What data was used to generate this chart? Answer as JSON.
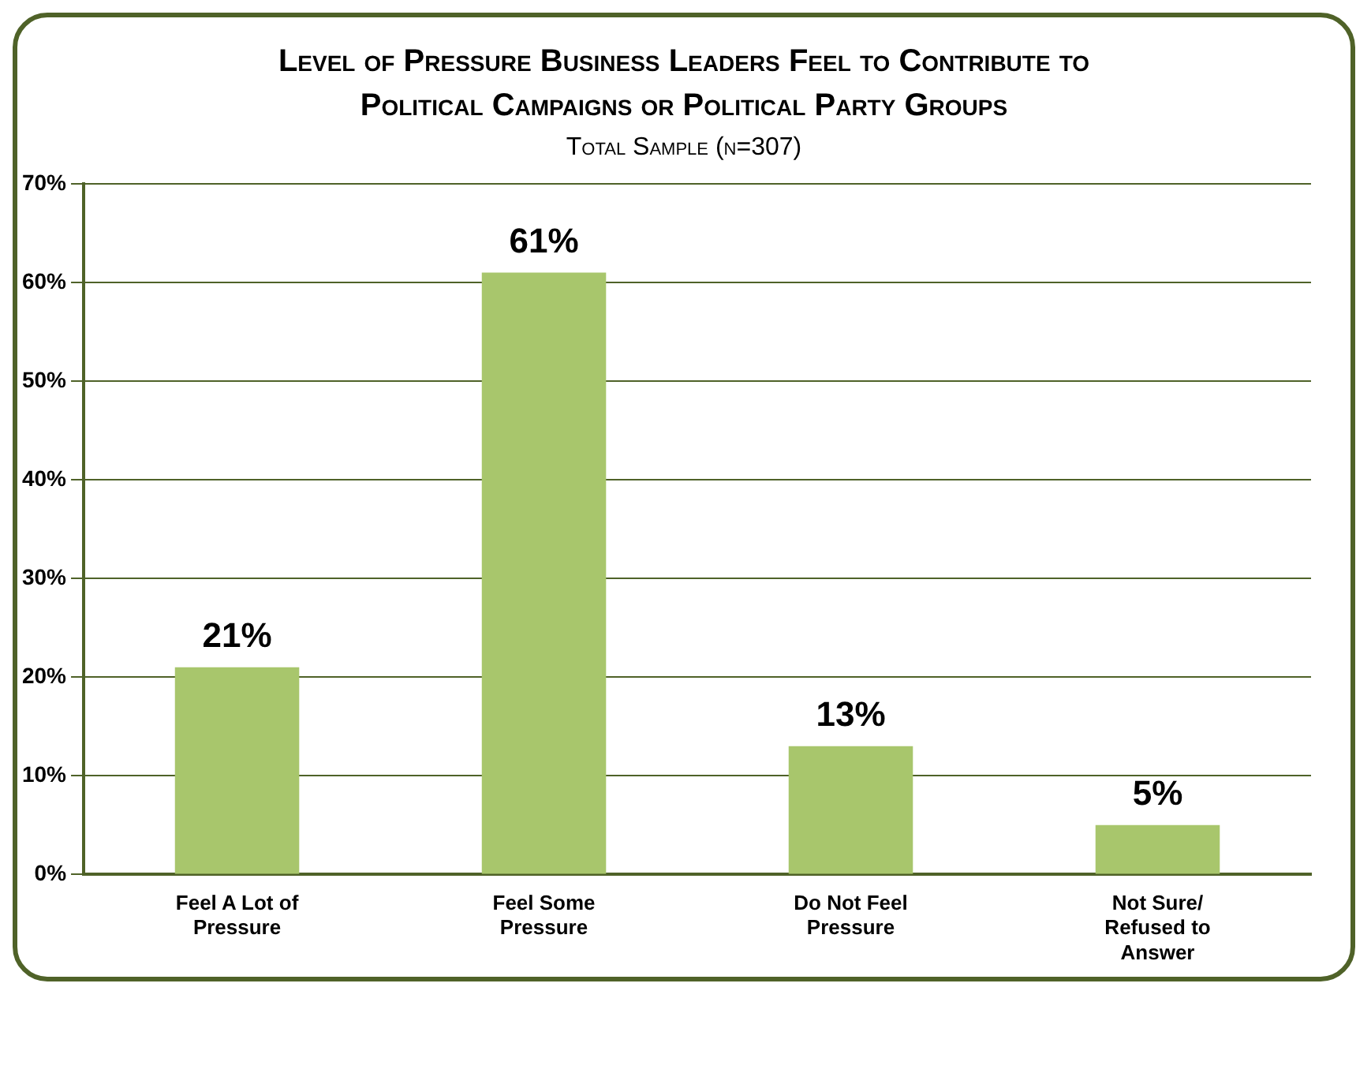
{
  "chart_data": {
    "type": "bar",
    "title": "Level of Pressure Business Leaders Feel to Contribute to Political Campaigns or Political Party Groups",
    "subtitle": "Total Sample (n=307)",
    "categories": [
      "Feel A Lot of Pressure",
      "Feel Some Pressure",
      "Do Not Feel Pressure",
      "Not Sure/ Refused to Answer"
    ],
    "values": [
      21,
      61,
      13,
      5
    ],
    "value_labels": [
      "21%",
      "61%",
      "13%",
      "5%"
    ],
    "color": "#a8c66c",
    "ylim": [
      0,
      70
    ],
    "yticks": [
      {
        "value": 0,
        "label": "0%"
      },
      {
        "value": 10,
        "label": "10%"
      },
      {
        "value": 20,
        "label": "20%"
      },
      {
        "value": 30,
        "label": "30%"
      },
      {
        "value": 40,
        "label": "40%"
      },
      {
        "value": 50,
        "label": "50%"
      },
      {
        "value": 60,
        "label": "60%"
      },
      {
        "value": 70,
        "label": "70%"
      }
    ],
    "grid": "y",
    "legend": false
  }
}
